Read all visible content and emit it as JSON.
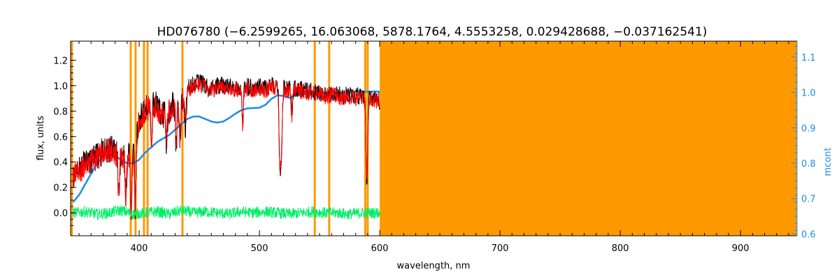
{
  "chart_data": {
    "type": "line",
    "title": "HD076780   (−6.2599265, 16.063068, 5878.1764, 4.5553258, 0.029428688, −0.037162541)",
    "xlabel": "wavelength, nm",
    "ylabel": "flux, units",
    "y2label": "mcont",
    "xlim": [
      343,
      947
    ],
    "ylim": [
      -0.18,
      1.35
    ],
    "y2lim": [
      0.595,
      1.145
    ],
    "xticks": [
      400,
      500,
      600,
      700,
      800,
      900
    ],
    "yticks": [
      0.0,
      0.2,
      0.4,
      0.6,
      0.8,
      1.0,
      1.2
    ],
    "yticklabels": [
      "0.0",
      "0.2",
      "0.4",
      "0.6",
      "0.8",
      "1.0",
      "1.2"
    ],
    "y2ticks": [
      0.6,
      0.7,
      0.8,
      0.9,
      1.0,
      1.1
    ],
    "y2ticklabels": [
      "0.6",
      "0.7",
      "0.8",
      "0.9",
      "1.0",
      "1.1"
    ],
    "masked_lines": [
      344,
      393,
      397,
      404,
      407,
      436,
      546,
      558,
      588,
      590
    ],
    "masked_band": [
      600,
      947
    ],
    "colors": {
      "observed": "#000000",
      "model": "#ff0000",
      "continuum": "#1e8ce6",
      "residual": "#00ee66",
      "mask": "#ff9900",
      "axis": "#000000",
      "y2axis": "#1e8ce6"
    },
    "series": [
      {
        "role": "continuum",
        "axis": "right",
        "x": [
          345,
          350,
          355,
          360,
          365,
          370,
          375,
          380,
          385,
          390,
          395,
          400,
          405,
          410,
          415,
          420,
          425,
          430,
          435,
          440,
          445,
          450,
          455,
          460,
          465,
          470,
          475,
          480,
          485,
          490,
          495,
          500,
          505,
          510,
          515,
          520,
          525,
          530,
          535,
          540,
          545,
          550,
          555,
          560,
          565,
          570,
          575,
          580,
          585,
          590,
          595,
          600
        ],
        "y": [
          0.69,
          0.71,
          0.74,
          0.77,
          0.8,
          0.82,
          0.825,
          0.82,
          0.81,
          0.8,
          0.8,
          0.81,
          0.83,
          0.845,
          0.86,
          0.87,
          0.88,
          0.895,
          0.91,
          0.925,
          0.932,
          0.932,
          0.925,
          0.918,
          0.915,
          0.918,
          0.928,
          0.94,
          0.95,
          0.955,
          0.956,
          0.957,
          0.965,
          0.982,
          0.992,
          0.99,
          0.985,
          0.99,
          0.996,
          0.995,
          0.99,
          0.995,
          1.0,
          1.0,
          0.998,
          1.0,
          1.002,
          1.003,
          1.003,
          1.002,
          1.003,
          1.002
        ]
      },
      {
        "role": "observed",
        "axis": "left",
        "x": [
          345,
          350,
          355,
          360,
          365,
          370,
          375,
          380,
          385,
          390,
          395,
          400,
          405,
          410,
          415,
          420,
          425,
          430,
          435,
          440,
          445,
          450,
          455,
          460,
          465,
          470,
          475,
          480,
          485,
          490,
          495,
          500,
          505,
          510,
          515,
          520,
          525,
          530,
          535,
          540,
          545,
          550,
          555,
          560,
          565,
          570,
          575,
          580,
          585,
          590,
          595,
          600
        ],
        "y": [
          0.42,
          0.45,
          0.5,
          0.53,
          0.55,
          0.6,
          0.62,
          0.6,
          0.55,
          0.55,
          0.6,
          0.85,
          0.93,
          0.97,
          0.95,
          0.88,
          0.92,
          0.98,
          1.0,
          1.05,
          1.08,
          1.1,
          1.07,
          1.05,
          1.07,
          1.08,
          1.06,
          1.05,
          1.07,
          1.06,
          1.05,
          1.06,
          1.05,
          1.08,
          1.06,
          1.05,
          1.04,
          1.05,
          1.04,
          1.03,
          1.02,
          1.01,
          1.0,
          1.01,
          1.0,
          0.99,
          1.0,
          0.99,
          0.98,
          0.97,
          0.96,
          0.95
        ]
      },
      {
        "role": "model",
        "axis": "left",
        "x": [
          345,
          350,
          355,
          360,
          365,
          370,
          375,
          380,
          385,
          390,
          395,
          400,
          405,
          410,
          415,
          420,
          425,
          430,
          435,
          440,
          445,
          450,
          455,
          460,
          465,
          470,
          475,
          480,
          485,
          490,
          495,
          500,
          505,
          510,
          515,
          520,
          525,
          530,
          535,
          540,
          545,
          550,
          555,
          560,
          565,
          570,
          575,
          580,
          585,
          590,
          595,
          600
        ],
        "y": [
          0.4,
          0.43,
          0.48,
          0.51,
          0.53,
          0.58,
          0.6,
          0.58,
          0.53,
          0.53,
          0.58,
          0.83,
          0.91,
          0.95,
          0.93,
          0.86,
          0.9,
          0.96,
          0.98,
          1.03,
          1.06,
          1.08,
          1.05,
          1.03,
          1.05,
          1.06,
          1.04,
          1.03,
          1.05,
          1.04,
          1.03,
          1.04,
          1.03,
          1.06,
          1.04,
          1.03,
          1.02,
          1.03,
          1.02,
          1.01,
          1.0,
          0.99,
          0.98,
          0.99,
          0.98,
          0.97,
          0.98,
          0.97,
          0.96,
          0.95,
          0.95,
          0.94
        ]
      },
      {
        "role": "residual",
        "axis": "left",
        "x": [
          345,
          355,
          365,
          375,
          385,
          395,
          405,
          415,
          425,
          435,
          445,
          455,
          465,
          475,
          485,
          495,
          505,
          515,
          525,
          535,
          545,
          555,
          565,
          575,
          585,
          595,
          600
        ],
        "y": [
          0.0,
          0.01,
          -0.01,
          0.0,
          0.02,
          -0.01,
          0.0,
          0.01,
          -0.01,
          0.02,
          0.0,
          0.01,
          0.0,
          -0.01,
          0.01,
          0.0,
          0.01,
          0.0,
          -0.01,
          0.0,
          0.01,
          0.0,
          0.0,
          -0.01,
          0.0,
          0.0,
          0.0
        ]
      }
    ],
    "absorption_lines": [
      {
        "x": 383,
        "depth": 0.35
      },
      {
        "x": 389,
        "depth": 0.3
      },
      {
        "x": 393.4,
        "depth": 0.55
      },
      {
        "x": 396.8,
        "depth": 0.55
      },
      {
        "x": 410.2,
        "depth": 0.3
      },
      {
        "x": 422.7,
        "depth": 0.25
      },
      {
        "x": 430.8,
        "depth": 0.35
      },
      {
        "x": 434.0,
        "depth": 0.35
      },
      {
        "x": 438.4,
        "depth": 0.25
      },
      {
        "x": 486.1,
        "depth": 0.3
      },
      {
        "x": 516.7,
        "depth": 0.3
      },
      {
        "x": 517.3,
        "depth": 0.4
      },
      {
        "x": 518.4,
        "depth": 0.45
      },
      {
        "x": 527.0,
        "depth": 0.2
      },
      {
        "x": 589.0,
        "depth": 0.4
      },
      {
        "x": 589.6,
        "depth": 0.35
      }
    ]
  }
}
